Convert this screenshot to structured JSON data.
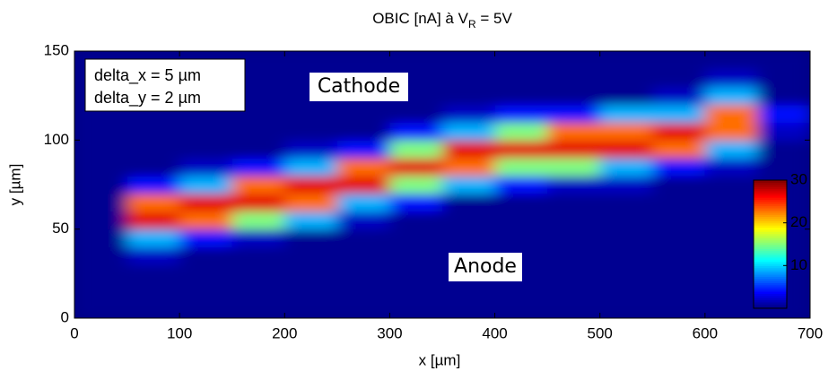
{
  "chart_data": {
    "type": "heatmap",
    "title": [
      "OBIC [nA] à V",
      "R",
      " = 5V"
    ],
    "xlabel": "x [µm]",
    "ylabel": "y [µm]",
    "xlim": [
      0,
      700
    ],
    "ylim": [
      0,
      150
    ],
    "xticks": [
      0,
      100,
      200,
      300,
      400,
      500,
      600,
      700
    ],
    "yticks": [
      0,
      50,
      100,
      150
    ],
    "zlim": [
      0,
      30
    ],
    "zticks": [
      10,
      20,
      30
    ],
    "colormap": "jet",
    "x": [
      25,
      75,
      125,
      175,
      225,
      275,
      325,
      375,
      425,
      475,
      525,
      575,
      625,
      675
    ],
    "y": [
      5,
      15,
      25,
      35,
      45,
      55,
      65,
      75,
      85,
      95,
      105,
      115,
      125,
      135,
      145
    ],
    "z": [
      [
        0.5,
        0.5,
        0.5,
        0.5,
        0.5,
        0.5,
        0.5,
        0.5,
        0.5,
        0.5,
        0.5,
        0.5,
        0.5,
        0.5
      ],
      [
        0.5,
        0.5,
        0.5,
        0.5,
        0.5,
        0.5,
        0.5,
        0.5,
        0.5,
        0.5,
        0.5,
        0.5,
        0.5,
        0.5
      ],
      [
        0.5,
        0.5,
        0.5,
        0.5,
        0.5,
        0.5,
        0.5,
        0.5,
        0.5,
        0.5,
        0.5,
        0.5,
        0.5,
        0.5
      ],
      [
        0.5,
        2,
        0.5,
        0.5,
        0.5,
        0.5,
        0.5,
        0.5,
        0.5,
        0.5,
        0.5,
        0.5,
        0.5,
        0.5
      ],
      [
        0.5,
        9,
        4,
        2,
        0.5,
        0.5,
        0.5,
        0.5,
        0.5,
        0.5,
        0.5,
        0.5,
        0.5,
        0.5
      ],
      [
        0.5,
        27,
        23,
        15,
        9,
        2,
        0.5,
        0.5,
        0.5,
        0.5,
        0.5,
        0.5,
        0.5,
        0.5
      ],
      [
        0.5,
        23,
        27,
        27,
        23,
        9,
        4,
        0.5,
        0.5,
        0.5,
        0.5,
        0.5,
        0.5,
        0.5
      ],
      [
        0.5,
        4,
        9,
        23,
        27,
        27,
        15,
        9,
        4,
        2,
        2,
        0.5,
        0.5,
        0.5
      ],
      [
        0.5,
        0.5,
        2,
        4,
        9,
        23,
        27,
        23,
        15,
        15,
        9,
        4,
        2,
        0.5
      ],
      [
        0.5,
        0.5,
        0.5,
        0.5,
        2,
        4,
        15,
        27,
        27,
        27,
        27,
        23,
        9,
        0.5
      ],
      [
        0.5,
        0.5,
        0.5,
        0.5,
        0.5,
        0.5,
        4,
        9,
        15,
        23,
        23,
        27,
        23,
        2
      ],
      [
        0.5,
        0.5,
        0.5,
        0.5,
        0.5,
        0.5,
        0.5,
        2,
        4,
        4,
        9,
        9,
        23,
        4
      ],
      [
        0.5,
        0.5,
        0.5,
        0.5,
        0.5,
        0.5,
        0.5,
        0.5,
        0.5,
        0.5,
        0.5,
        2,
        9,
        0.5
      ],
      [
        0.5,
        0.5,
        0.5,
        0.5,
        0.5,
        0.5,
        0.5,
        0.5,
        0.5,
        0.5,
        0.5,
        0.5,
        2,
        0.5
      ],
      [
        0.5,
        0.5,
        0.5,
        0.5,
        0.5,
        0.5,
        0.5,
        0.5,
        0.5,
        0.5,
        0.5,
        0.5,
        0.5,
        0.5
      ]
    ],
    "annotations": [
      "delta_x = 5 µm",
      "delta_y = 2 µm",
      "Cathode",
      "Anode"
    ]
  }
}
